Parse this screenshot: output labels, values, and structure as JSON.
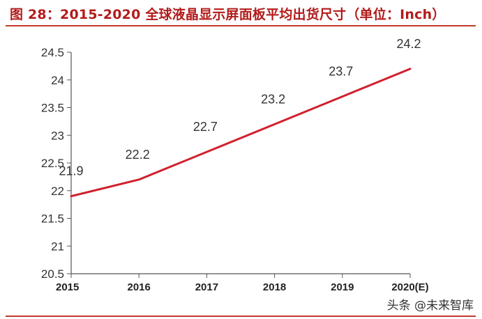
{
  "title": "图 28：2015-2020 全球液晶显示屏面板平均出货尺寸（单位：Inch）",
  "watermark": "头条 @未来智库",
  "colors": {
    "title": "#b31b1b",
    "line": "#d0202e",
    "axis": "#555555",
    "rule": "#c0392b"
  },
  "chart_data": {
    "type": "line",
    "title": "",
    "xlabel": "",
    "ylabel": "",
    "categories": [
      "2015",
      "2016",
      "2017",
      "2018",
      "2019",
      "2020(E)"
    ],
    "series": [
      {
        "values": [
          21.9,
          22.2,
          22.7,
          23.2,
          23.7,
          24.2
        ],
        "labels": [
          "21.9",
          "22.2",
          "22.7",
          "23.2",
          "23.7",
          "24.2"
        ]
      }
    ],
    "yticks": [
      "20.5",
      "21",
      "21.5",
      "22",
      "22.5",
      "23",
      "23.5",
      "24",
      "24.5"
    ],
    "ylim": [
      20.5,
      24.5
    ],
    "grid": false,
    "legend": "none"
  }
}
